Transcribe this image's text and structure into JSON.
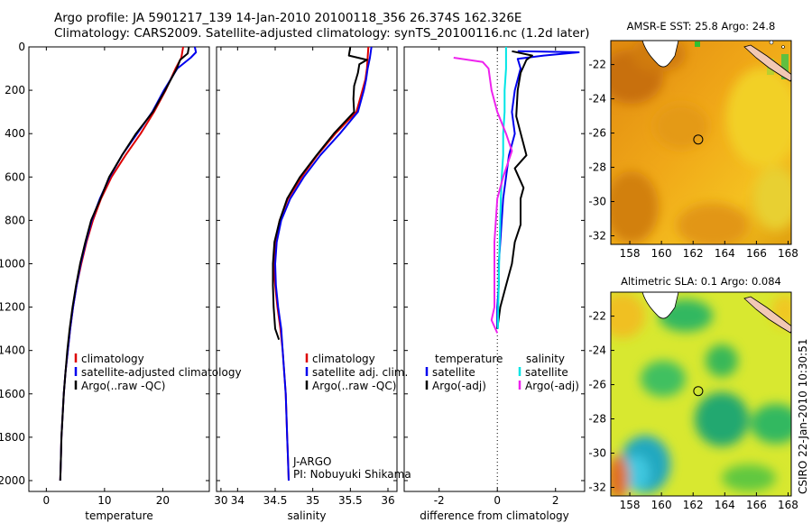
{
  "header": {
    "line1": "Argo profile: JA 5901217_139 14-Jan-2010 20100118_356 26.374S 162.326E",
    "line2": "Climatology: CARS2009. Satellite-adjusted climatology: synTS_20100116.nc (1.2d later)"
  },
  "colors": {
    "climatology": "#dd0000",
    "satellite": "#0000ee",
    "argo": "#000000",
    "sal_satellite": "#00e5e5",
    "sal_argo": "#ee22ee"
  },
  "chart_data": [
    {
      "type": "line",
      "id": "temperature",
      "xlabel": "temperature",
      "xlim": [
        -3,
        28
      ],
      "ylim": [
        2050,
        0
      ],
      "xticks": [
        "0",
        "10",
        "20",
        "30"
      ],
      "xtick_values": [
        0,
        10,
        20,
        30
      ],
      "yticks": [
        "0",
        "200",
        "400",
        "600",
        "800",
        "1000",
        "1200",
        "1400",
        "1600",
        "1800",
        "2000"
      ],
      "ytick_values": [
        0,
        200,
        400,
        600,
        800,
        1000,
        1200,
        1400,
        1600,
        1800,
        2000
      ],
      "legend": [
        "climatology",
        "satellite-adjusted climatology",
        "Argo(..raw -QC)"
      ],
      "series": [
        {
          "name": "climatology",
          "color": "climatology",
          "points": [
            [
              23.5,
              0
            ],
            [
              23.2,
              50
            ],
            [
              22.2,
              100
            ],
            [
              20.5,
              200
            ],
            [
              18.5,
              300
            ],
            [
              16.2,
              400
            ],
            [
              13.6,
              500
            ],
            [
              11.2,
              600
            ],
            [
              9.4,
              700
            ],
            [
              8.0,
              800
            ],
            [
              6.9,
              900
            ],
            [
              6.0,
              1000
            ],
            [
              5.2,
              1100
            ],
            [
              4.6,
              1200
            ],
            [
              4.1,
              1300
            ],
            [
              3.7,
              1400
            ],
            [
              3.3,
              1500
            ],
            [
              3.0,
              1600
            ],
            [
              2.8,
              1700
            ],
            [
              2.6,
              1800
            ],
            [
              2.5,
              1900
            ],
            [
              2.4,
              2000
            ]
          ]
        },
        {
          "name": "satellite",
          "color": "satellite",
          "points": [
            [
              25.5,
              0
            ],
            [
              25.7,
              25
            ],
            [
              24.8,
              50
            ],
            [
              22.5,
              100
            ],
            [
              20.2,
              200
            ],
            [
              18.2,
              300
            ],
            [
              15.6,
              400
            ],
            [
              13.0,
              500
            ],
            [
              10.9,
              600
            ],
            [
              9.2,
              700
            ],
            [
              7.8,
              800
            ],
            [
              6.8,
              900
            ],
            [
              5.9,
              1000
            ],
            [
              5.2,
              1100
            ],
            [
              4.6,
              1200
            ],
            [
              4.1,
              1300
            ],
            [
              3.7,
              1400
            ],
            [
              3.3,
              1500
            ],
            [
              3.0,
              1600
            ],
            [
              2.8,
              1700
            ],
            [
              2.6,
              1800
            ],
            [
              2.5,
              1900
            ],
            [
              2.4,
              2000
            ]
          ]
        },
        {
          "name": "argo",
          "color": "argo",
          "points": [
            [
              24.5,
              0
            ],
            [
              24.3,
              30
            ],
            [
              23.0,
              60
            ],
            [
              22.4,
              100
            ],
            [
              20.4,
              200
            ],
            [
              18.3,
              300
            ],
            [
              15.4,
              400
            ],
            [
              13.0,
              500
            ],
            [
              10.8,
              600
            ],
            [
              9.3,
              700
            ],
            [
              7.7,
              800
            ],
            [
              6.7,
              900
            ],
            [
              5.8,
              1000
            ],
            [
              5.1,
              1100
            ],
            [
              4.5,
              1200
            ],
            [
              4.0,
              1300
            ],
            [
              3.6,
              1400
            ],
            [
              3.3,
              1500
            ],
            [
              3.0,
              1600
            ],
            [
              2.8,
              1700
            ],
            [
              2.6,
              1800
            ],
            [
              2.5,
              1900
            ],
            [
              2.4,
              2000
            ]
          ]
        }
      ]
    },
    {
      "type": "line",
      "id": "salinity",
      "xlabel": "salinity",
      "xlim": [
        33.72,
        36.12
      ],
      "ylim": [
        2050,
        0
      ],
      "xticks": [
        "34",
        "34.5",
        "35",
        "35.5",
        "36"
      ],
      "xtick_values": [
        34,
        34.5,
        35,
        35.5,
        36
      ],
      "legend": [
        "climatology",
        "satellite adj. clim.",
        "Argo(..raw -QC)"
      ],
      "annotation": [
        "J-ARGO",
        "PI: Nobuyuki Shikama"
      ],
      "series": [
        {
          "name": "climatology",
          "color": "climatology",
          "points": [
            [
              35.74,
              0
            ],
            [
              35.73,
              50
            ],
            [
              35.72,
              100
            ],
            [
              35.7,
              150
            ],
            [
              35.66,
              200
            ],
            [
              35.58,
              300
            ],
            [
              35.3,
              400
            ],
            [
              35.06,
              500
            ],
            [
              34.85,
              600
            ],
            [
              34.67,
              700
            ],
            [
              34.56,
              800
            ],
            [
              34.5,
              900
            ],
            [
              34.48,
              1000
            ],
            [
              34.5,
              1100
            ],
            [
              34.53,
              1200
            ],
            [
              34.57,
              1300
            ],
            [
              34.6,
              1400
            ],
            [
              34.62,
              1500
            ],
            [
              34.64,
              1600
            ],
            [
              34.65,
              1700
            ],
            [
              34.66,
              1800
            ],
            [
              34.67,
              1900
            ],
            [
              34.68,
              2000
            ]
          ]
        },
        {
          "name": "satellite",
          "color": "satellite",
          "points": [
            [
              35.78,
              0
            ],
            [
              35.76,
              50
            ],
            [
              35.73,
              100
            ],
            [
              35.71,
              150
            ],
            [
              35.68,
              200
            ],
            [
              35.6,
              300
            ],
            [
              35.36,
              400
            ],
            [
              35.1,
              500
            ],
            [
              34.88,
              600
            ],
            [
              34.7,
              700
            ],
            [
              34.58,
              800
            ],
            [
              34.52,
              900
            ],
            [
              34.5,
              1000
            ],
            [
              34.51,
              1100
            ],
            [
              34.54,
              1200
            ],
            [
              34.58,
              1300
            ],
            [
              34.6,
              1400
            ],
            [
              34.62,
              1500
            ],
            [
              34.64,
              1600
            ],
            [
              34.65,
              1700
            ],
            [
              34.66,
              1800
            ],
            [
              34.67,
              1900
            ],
            [
              34.68,
              2000
            ]
          ]
        },
        {
          "name": "argo",
          "color": "argo",
          "points": [
            [
              35.5,
              0
            ],
            [
              35.48,
              40
            ],
            [
              35.72,
              60
            ],
            [
              35.62,
              80
            ],
            [
              35.6,
              120
            ],
            [
              35.55,
              180
            ],
            [
              35.54,
              240
            ],
            [
              35.55,
              300
            ],
            [
              35.28,
              400
            ],
            [
              35.05,
              500
            ],
            [
              34.83,
              600
            ],
            [
              34.66,
              700
            ],
            [
              34.56,
              800
            ],
            [
              34.49,
              900
            ],
            [
              34.47,
              1000
            ],
            [
              34.47,
              1100
            ],
            [
              34.48,
              1200
            ],
            [
              34.5,
              1300
            ],
            [
              34.55,
              1350
            ]
          ]
        }
      ]
    },
    {
      "type": "line",
      "id": "difference",
      "xlabel": "difference from climatology",
      "xlim": [
        -3.2,
        3.0
      ],
      "ylim": [
        2050,
        0
      ],
      "xticks": [
        "-2",
        "0",
        "2"
      ],
      "xtick_values": [
        -2,
        0,
        2
      ],
      "legend_left_title": "temperature",
      "legend_right_title": "salinity",
      "legend_left": [
        "satellite",
        "Argo(-adj)"
      ],
      "legend_right": [
        "satellite",
        "Argo(-adj)"
      ],
      "series": [
        {
          "name": "temperature satellite",
          "color": "satellite",
          "points": [
            [
              0.7,
              20
            ],
            [
              2.8,
              25
            ],
            [
              1.6,
              40
            ],
            [
              0.7,
              55
            ],
            [
              0.8,
              100
            ],
            [
              0.6,
              200
            ],
            [
              0.5,
              300
            ],
            [
              0.6,
              400
            ],
            [
              0.4,
              500
            ],
            [
              0.3,
              600
            ],
            [
              0.2,
              700
            ],
            [
              0.15,
              800
            ],
            [
              0.1,
              900
            ],
            [
              0.05,
              1000
            ],
            [
              0.05,
              1100
            ],
            [
              0.0,
              1200
            ],
            [
              0.0,
              1300
            ]
          ]
        },
        {
          "name": "temperature argo",
          "color": "argo",
          "points": [
            [
              0.5,
              20
            ],
            [
              1.2,
              40
            ],
            [
              1.0,
              60
            ],
            [
              0.8,
              120
            ],
            [
              0.7,
              200
            ],
            [
              0.65,
              320
            ],
            [
              1.0,
              500
            ],
            [
              0.6,
              560
            ],
            [
              0.9,
              650
            ],
            [
              0.8,
              700
            ],
            [
              0.8,
              820
            ],
            [
              0.6,
              900
            ],
            [
              0.5,
              1000
            ],
            [
              0.3,
              1100
            ],
            [
              0.1,
              1200
            ],
            [
              0.0,
              1300
            ]
          ]
        },
        {
          "name": "salinity satellite",
          "color": "sal_satellite",
          "points": [
            [
              0.3,
              0
            ],
            [
              0.3,
              100
            ],
            [
              0.25,
              200
            ],
            [
              0.25,
              300
            ],
            [
              0.2,
              400
            ],
            [
              0.2,
              500
            ],
            [
              0.15,
              600
            ],
            [
              0.12,
              700
            ],
            [
              0.1,
              800
            ],
            [
              0.08,
              900
            ],
            [
              0.06,
              1000
            ],
            [
              0.05,
              1100
            ],
            [
              0.03,
              1200
            ],
            [
              0.02,
              1300
            ]
          ]
        },
        {
          "name": "salinity argo",
          "color": "sal_argo",
          "points": [
            [
              -1.5,
              50
            ],
            [
              -0.5,
              70
            ],
            [
              -0.3,
              100
            ],
            [
              -0.2,
              200
            ],
            [
              0.0,
              300
            ],
            [
              0.3,
              400
            ],
            [
              0.5,
              480
            ],
            [
              0.2,
              600
            ],
            [
              0.0,
              700
            ],
            [
              -0.05,
              800
            ],
            [
              -0.1,
              900
            ],
            [
              -0.1,
              1000
            ],
            [
              -0.1,
              1100
            ],
            [
              -0.1,
              1200
            ],
            [
              -0.2,
              1260
            ],
            [
              0.0,
              1320
            ]
          ]
        }
      ]
    },
    {
      "type": "heatmap",
      "id": "sst-map",
      "title": "AMSR-E SST: 25.8 Argo: 24.8",
      "xticks": [
        "158",
        "160",
        "162",
        "164",
        "166",
        "168"
      ],
      "yticks": [
        "-22",
        "-24",
        "-26",
        "-28",
        "-30",
        "-32"
      ],
      "xlim": [
        156.8,
        168.2
      ],
      "ylim": [
        -32.5,
        -20.6
      ],
      "marker": [
        162.326,
        -26.374
      ]
    },
    {
      "type": "heatmap",
      "id": "sla-map",
      "title": "Altimetric SLA: 0.1 Argo: 0.084",
      "xticks": [
        "158",
        "160",
        "162",
        "164",
        "166",
        "168"
      ],
      "yticks": [
        "-22",
        "-24",
        "-26",
        "-28",
        "-30",
        "-32"
      ],
      "xlim": [
        156.8,
        168.2
      ],
      "ylim": [
        -32.5,
        -20.6
      ],
      "marker": [
        162.326,
        -26.374
      ]
    }
  ],
  "footer": {
    "stamp": "CSIRO 22-Jan-2010 10:30:51"
  }
}
